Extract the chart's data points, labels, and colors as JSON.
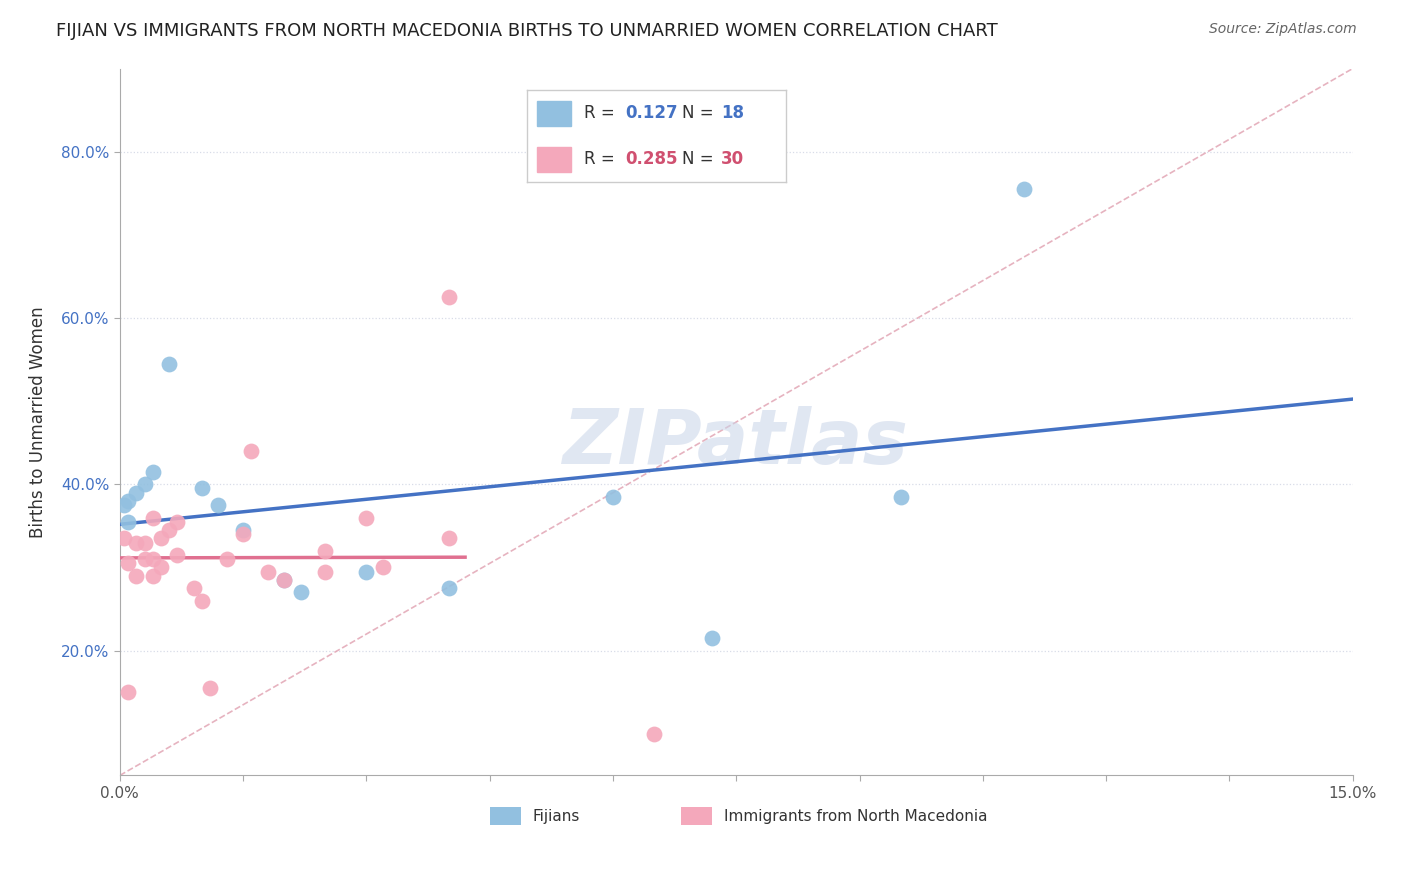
{
  "title": "FIJIAN VS IMMIGRANTS FROM NORTH MACEDONIA BIRTHS TO UNMARRIED WOMEN CORRELATION CHART",
  "source": "Source: ZipAtlas.com",
  "ylabel": "Births to Unmarried Women",
  "xlim": [
    0.0,
    0.15
  ],
  "ylim": [
    0.05,
    0.9
  ],
  "fijian_color": "#92c0e0",
  "macedonia_color": "#f4a8bb",
  "fijian_line_color": "#4472c4",
  "macedonia_line_color": "#e07090",
  "diagonal_line_color": "#d0b0b8",
  "watermark": "ZIPatlas",
  "legend_R_fijian_label": "R = ",
  "legend_R_fijian_val": "0.127",
  "legend_N_fijian_label": "N = ",
  "legend_N_fijian_val": "18",
  "legend_R_mac_label": "R = ",
  "legend_R_mac_val": "0.285",
  "legend_N_mac_label": "N = ",
  "legend_N_mac_val": "30",
  "fijian_line_color_num": "#4472c4",
  "mac_line_color_num": "#d05070",
  "fijian_x": [
    0.0005,
    0.001,
    0.001,
    0.002,
    0.003,
    0.004,
    0.006,
    0.01,
    0.012,
    0.015,
    0.02,
    0.022,
    0.03,
    0.04,
    0.06,
    0.072,
    0.095,
    0.11
  ],
  "fijian_y": [
    0.375,
    0.38,
    0.355,
    0.39,
    0.4,
    0.415,
    0.545,
    0.395,
    0.375,
    0.345,
    0.285,
    0.27,
    0.295,
    0.275,
    0.385,
    0.215,
    0.385,
    0.755
  ],
  "mac_x": [
    0.0005,
    0.001,
    0.001,
    0.002,
    0.002,
    0.003,
    0.003,
    0.004,
    0.004,
    0.004,
    0.005,
    0.005,
    0.006,
    0.007,
    0.007,
    0.009,
    0.01,
    0.011,
    0.013,
    0.015,
    0.016,
    0.018,
    0.02,
    0.025,
    0.025,
    0.03,
    0.032,
    0.04,
    0.065,
    0.04
  ],
  "mac_y": [
    0.335,
    0.15,
    0.305,
    0.29,
    0.33,
    0.33,
    0.31,
    0.36,
    0.31,
    0.29,
    0.335,
    0.3,
    0.345,
    0.355,
    0.315,
    0.275,
    0.26,
    0.155,
    0.31,
    0.34,
    0.44,
    0.295,
    0.285,
    0.32,
    0.295,
    0.36,
    0.3,
    0.335,
    0.1,
    0.625
  ]
}
